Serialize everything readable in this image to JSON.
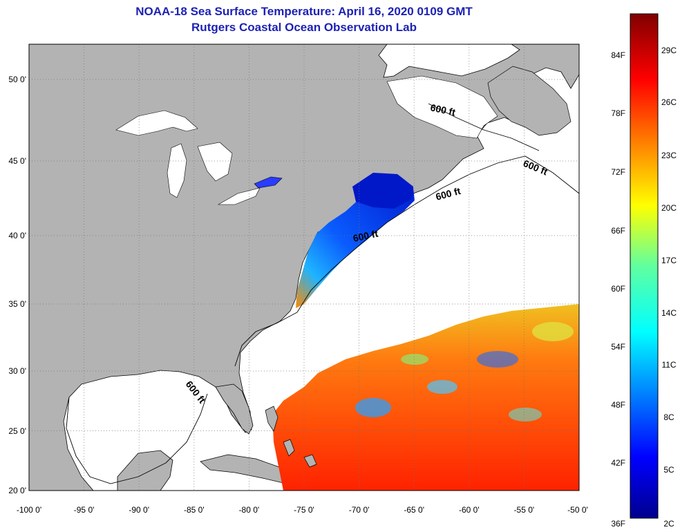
{
  "title": "NOAA-18 Sea Surface Temperature:  April 16, 2020 0109 GMT",
  "subtitle": "Rutgers Coastal Ocean Observation Lab",
  "map": {
    "lon_range": [
      -100,
      -50
    ],
    "lat_range": [
      20,
      52.5
    ],
    "lon_ticks": [
      "-100 0'",
      "-95 0'",
      "-90 0'",
      "-85 0'",
      "-80 0'",
      "-75 0'",
      "-70 0'",
      "-65 0'",
      "-60 0'",
      "-55 0'",
      "-50 0'"
    ],
    "lat_ticks": [
      "20 0'",
      "25 0'",
      "30 0'",
      "35 0'",
      "40 0'",
      "45 0'",
      "50 0'"
    ],
    "contour_labels": [
      "600 ft",
      "600 ft",
      "600 ft",
      "600 ft",
      "600 ft"
    ],
    "colors": {
      "land": "#b3b3b3",
      "ocean": "#ffffff",
      "border": "#000000"
    }
  },
  "colorbar": {
    "fahrenheit_labels": [
      "36F",
      "42F",
      "48F",
      "54F",
      "60F",
      "66F",
      "72F",
      "78F",
      "84F"
    ],
    "celsius_labels": [
      "2C",
      "5C",
      "8C",
      "11C",
      "14C",
      "17C",
      "20C",
      "23C",
      "26C",
      "29C"
    ]
  }
}
